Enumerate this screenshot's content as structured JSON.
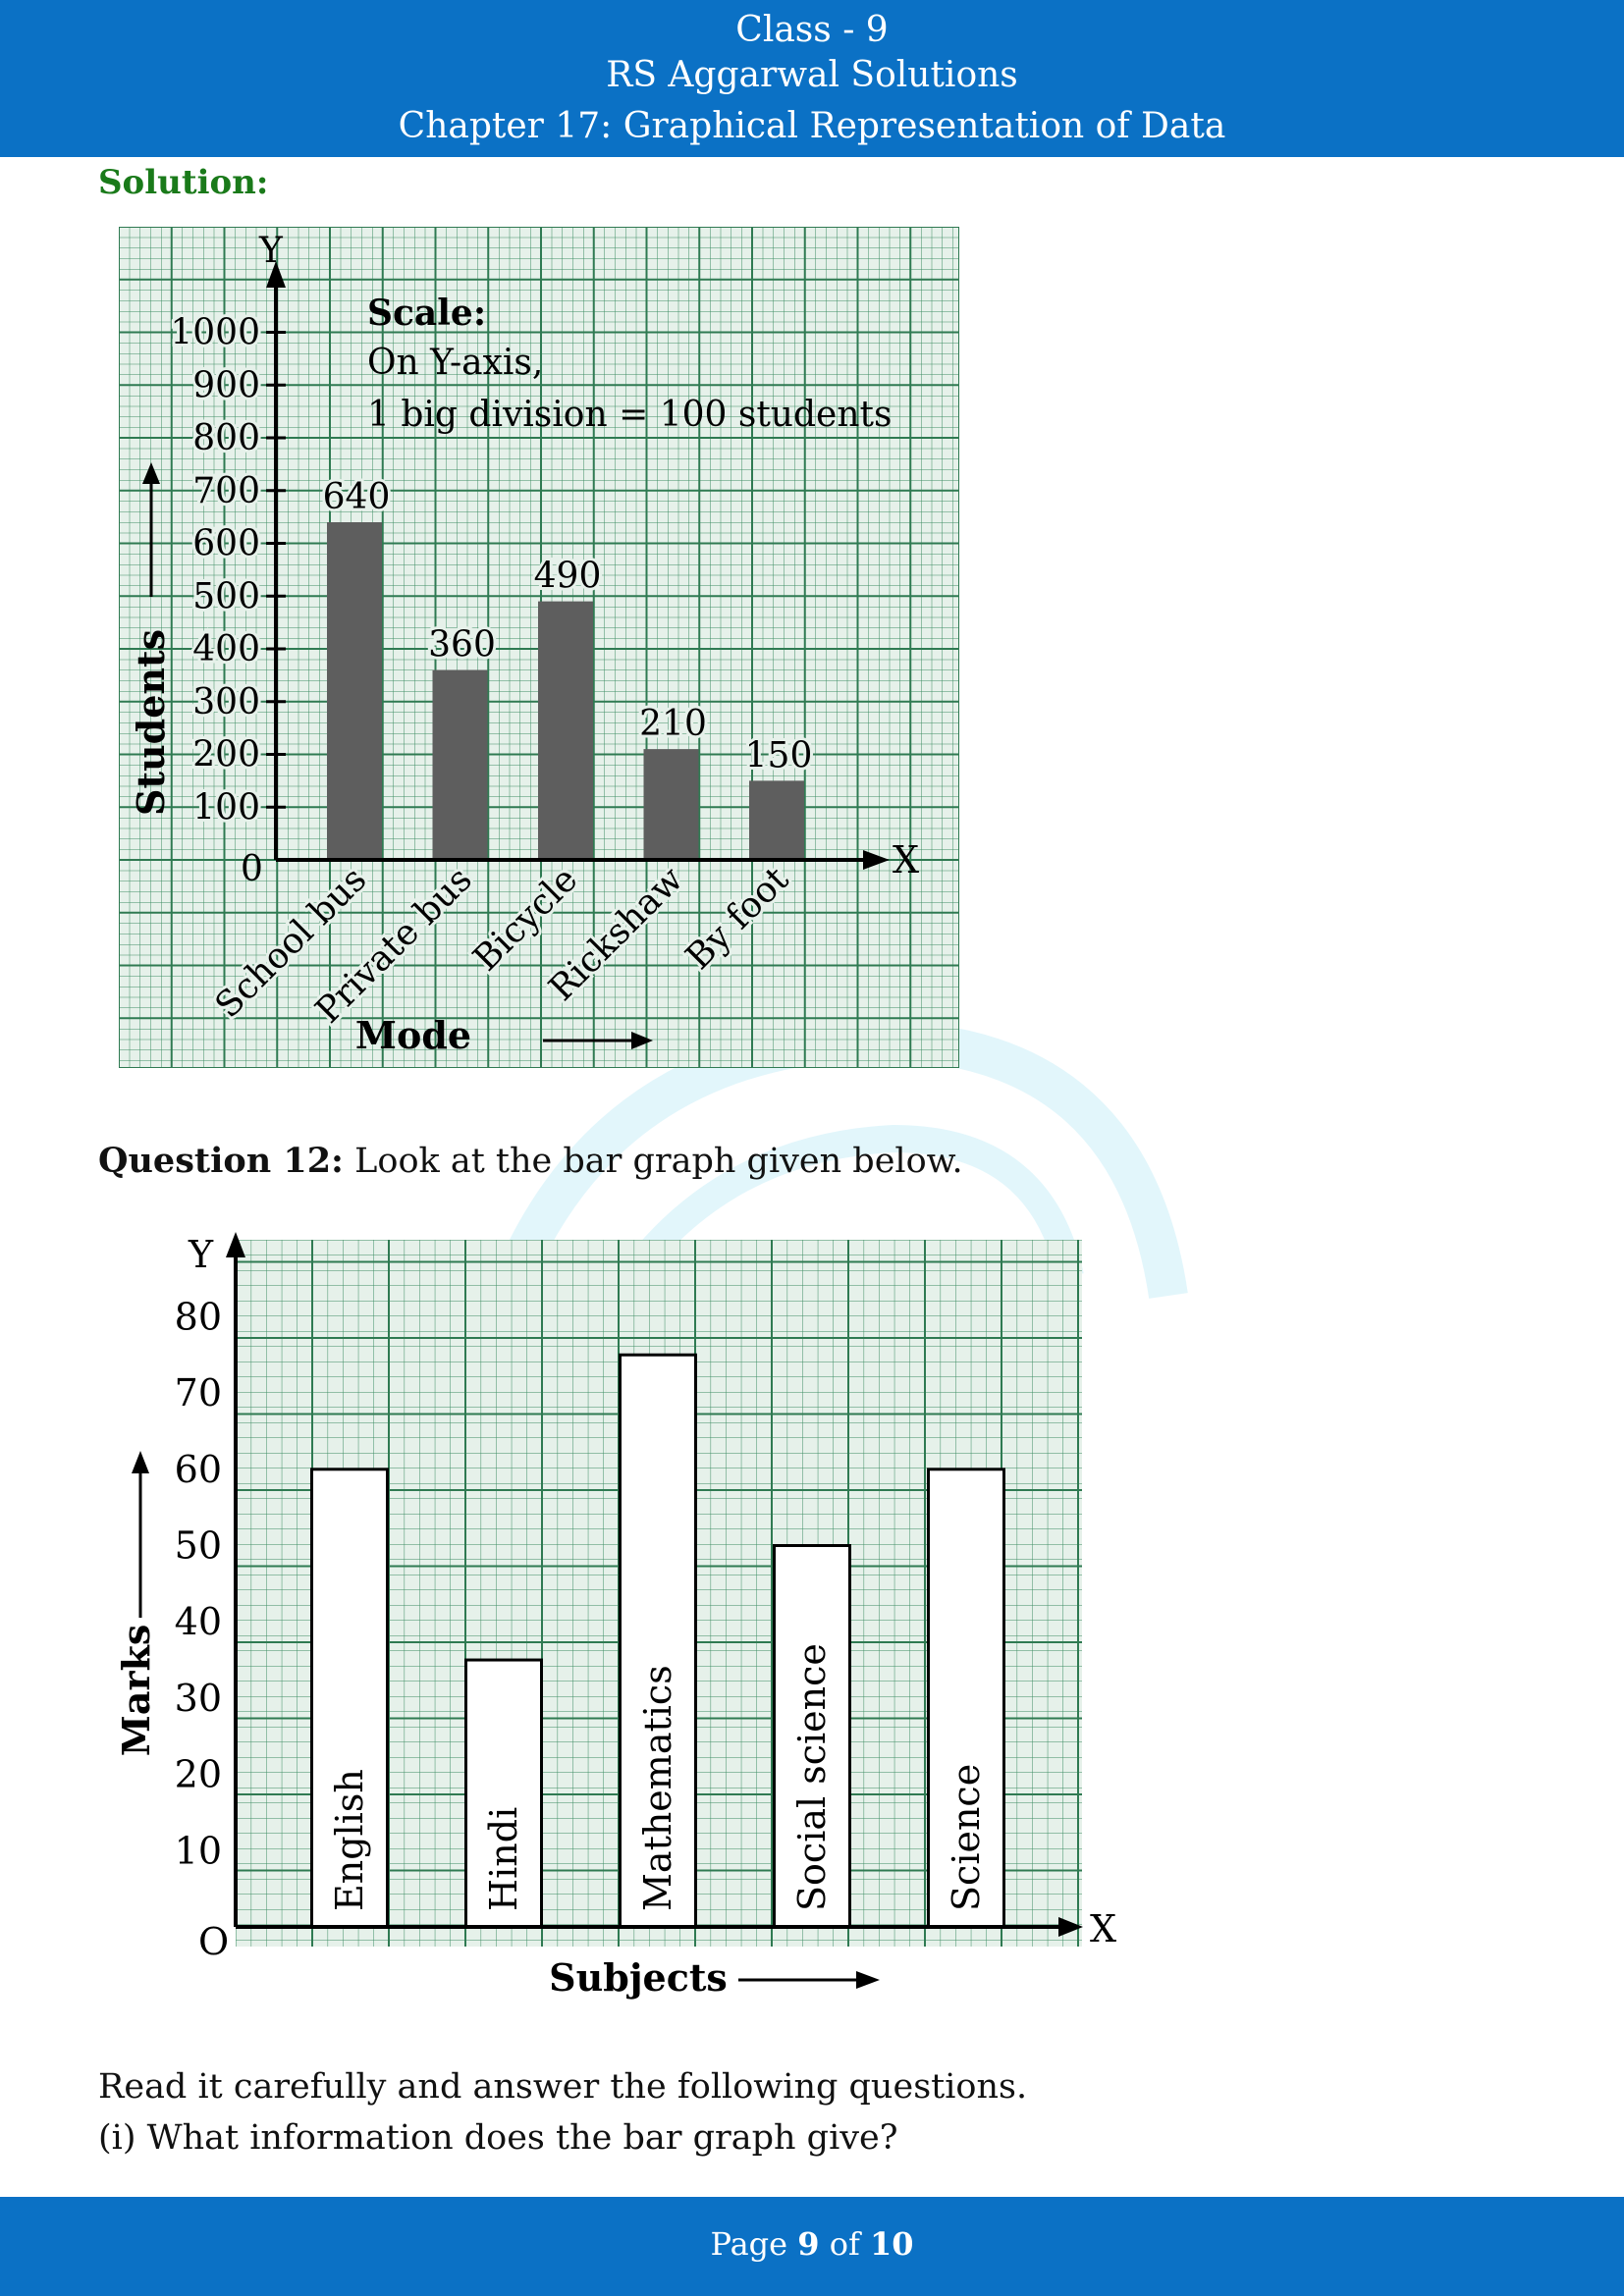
{
  "header": {
    "line1": "Class - 9",
    "line2": "RS Aggarwal Solutions",
    "line3": "Chapter 17: Graphical Representation of Data"
  },
  "solution_label": "Solution:",
  "question12": {
    "label": "Question 12:",
    "text": "Look at the bar graph given below."
  },
  "paragraph1": "Read it carefully and answer the following questions.",
  "paragraph2": "(i) What information does the bar graph give?",
  "footer": {
    "prefix": "Page",
    "page": "9",
    "of": "of",
    "total": "10"
  },
  "colors": {
    "header_bg": "#0b71c5",
    "grid_bg": "#e6f1ea",
    "grid_line": "#2f7a52",
    "bar_dark": "#5e5e5e",
    "solution_green": "#1a7a1a"
  },
  "chart_data": [
    {
      "type": "bar",
      "categories": [
        "School bus",
        "Private bus",
        "Bicycle",
        "Rickshaw",
        "By foot"
      ],
      "values": [
        640,
        360,
        490,
        210,
        150
      ],
      "data_labels": [
        "640",
        "360",
        "490",
        "210",
        "150"
      ],
      "yticks": [
        "1000",
        "900",
        "800",
        "700",
        "600",
        "500",
        "400",
        "300",
        "200",
        "100"
      ],
      "ylim": [
        0,
        1000
      ],
      "xlabel": "Mode",
      "ylabel": "Students",
      "x_axis_letter": "X",
      "y_axis_letter": "Y",
      "origin": "0",
      "scale_title": "Scale:",
      "scale_line1": "On Y-axis,",
      "scale_line2": "1 big division = 100 students",
      "grid": true
    },
    {
      "type": "bar",
      "categories": [
        "English",
        "Hindi",
        "Mathematics",
        "Social science",
        "Science"
      ],
      "values": [
        60,
        35,
        75,
        50,
        60
      ],
      "yticks": [
        "80",
        "70",
        "60",
        "50",
        "40",
        "30",
        "20",
        "10"
      ],
      "ylim": [
        0,
        90
      ],
      "xlabel": "Subjects",
      "ylabel": "Marks",
      "x_axis_letter": "X",
      "y_axis_letter": "Y",
      "origin": "O",
      "grid": true
    }
  ]
}
